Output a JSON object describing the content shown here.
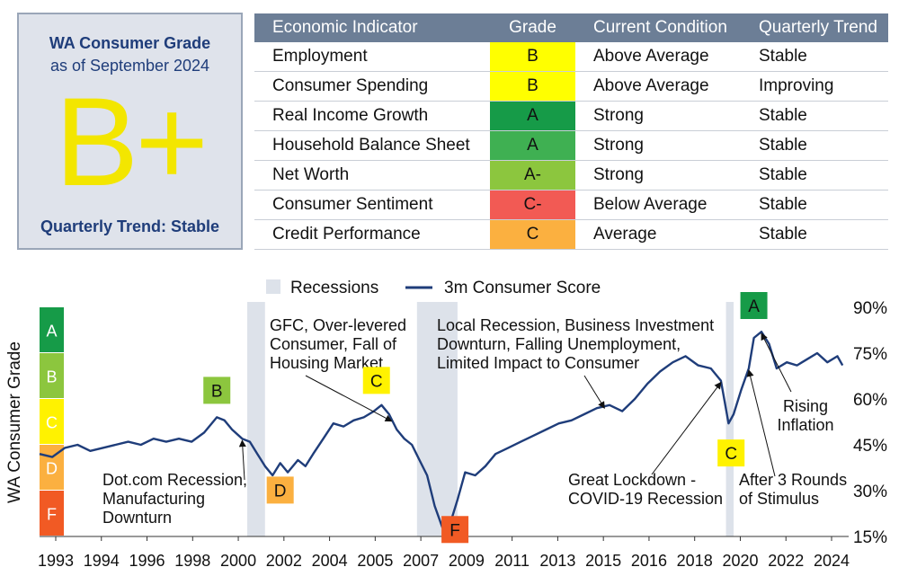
{
  "grade_box": {
    "title": "WA Consumer Grade",
    "subtitle": "as of September 2024",
    "grade": "B+",
    "trend": "Quarterly Trend: Stable"
  },
  "table": {
    "headers": [
      "Economic Indicator",
      "Grade",
      "Current Condition",
      "Quarterly Trend"
    ],
    "rows": [
      {
        "indicator": "Employment",
        "grade": "B",
        "condition": "Above Average",
        "trend": "Stable",
        "color": "#ffff00"
      },
      {
        "indicator": "Consumer Spending",
        "grade": "B",
        "condition": "Above Average",
        "trend": "Improving",
        "color": "#ffff00"
      },
      {
        "indicator": "Real Income Growth",
        "grade": "A",
        "condition": "Strong",
        "trend": "Stable",
        "color": "#169b48"
      },
      {
        "indicator": "Household Balance Sheet",
        "grade": "A",
        "condition": "Strong",
        "trend": "Stable",
        "color": "#3fb052"
      },
      {
        "indicator": "Net Worth",
        "grade": "A-",
        "condition": "Strong",
        "trend": "Stable",
        "color": "#8cc63e"
      },
      {
        "indicator": "Consumer Sentiment",
        "grade": "C-",
        "condition": "Below Average",
        "trend": "Stable",
        "color": "#f25a54"
      },
      {
        "indicator": "Credit Performance",
        "grade": "C",
        "condition": "Average",
        "trend": "Stable",
        "color": "#fbb040"
      }
    ]
  },
  "chart_data": {
    "type": "line",
    "title": "",
    "ylabel": "WA Consumer Grade",
    "ylim": [
      15,
      90
    ],
    "yticks": [
      "15%",
      "30%",
      "45%",
      "60%",
      "75%",
      "90%"
    ],
    "xticks": [
      "1993",
      "1994",
      "1996",
      "1998",
      "2000",
      "2002",
      "2004",
      "2005",
      "2007",
      "2009",
      "2011",
      "2013",
      "2015",
      "2016",
      "2018",
      "2020",
      "2022",
      "2024"
    ],
    "legend": {
      "recessions": "Recessions",
      "series": "3m Consumer Score"
    },
    "grade_bands": [
      {
        "label": "A",
        "color": "#169b48"
      },
      {
        "label": "B",
        "color": "#8cc63e"
      },
      {
        "label": "C",
        "color": "#fff200"
      },
      {
        "label": "D",
        "color": "#fbb040"
      },
      {
        "label": "F",
        "color": "#f15a24"
      }
    ],
    "recessions": [
      [
        2001.2,
        2001.9
      ],
      [
        2007.9,
        2009.5
      ],
      [
        2020.1,
        2020.4
      ]
    ],
    "series": [
      {
        "name": "3m Consumer Score",
        "x": [
          1993.0,
          1993.5,
          1994.0,
          1994.5,
          1995.0,
          1995.5,
          1996.0,
          1996.5,
          1997.0,
          1997.5,
          1998.0,
          1998.5,
          1999.0,
          1999.5,
          2000.0,
          2000.3,
          2000.6,
          2001.0,
          2001.3,
          2001.6,
          2001.9,
          2002.2,
          2002.5,
          2002.8,
          2003.2,
          2003.5,
          2003.8,
          2004.2,
          2004.6,
          2005.0,
          2005.4,
          2005.8,
          2006.2,
          2006.5,
          2006.8,
          2007.1,
          2007.4,
          2007.7,
          2008.0,
          2008.3,
          2008.6,
          2008.9,
          2009.2,
          2009.5,
          2009.8,
          2010.2,
          2010.6,
          2011.0,
          2011.5,
          2012.0,
          2012.5,
          2013.0,
          2013.5,
          2014.0,
          2014.5,
          2015.0,
          2015.5,
          2016.0,
          2016.5,
          2017.0,
          2017.5,
          2018.0,
          2018.5,
          2019.0,
          2019.5,
          2019.9,
          2020.2,
          2020.4,
          2020.7,
          2021.0,
          2021.2,
          2021.5,
          2021.8,
          2022.1,
          2022.5,
          2022.9,
          2023.3,
          2023.7,
          2024.1,
          2024.5,
          2024.7
        ],
        "values": [
          42,
          41,
          44,
          45,
          43,
          44,
          45,
          46,
          45,
          47,
          46,
          47,
          46,
          49,
          54,
          53,
          50,
          47,
          46,
          42,
          38,
          35,
          39,
          36,
          40,
          38,
          42,
          47,
          52,
          51,
          53,
          54,
          56,
          58,
          55,
          50,
          47,
          45,
          40,
          35,
          25,
          18,
          19,
          27,
          36,
          35,
          38,
          42,
          44,
          46,
          48,
          50,
          52,
          53,
          55,
          57,
          58,
          56,
          60,
          65,
          69,
          72,
          74,
          71,
          70,
          66,
          52,
          55,
          63,
          70,
          80,
          82,
          78,
          70,
          72,
          71,
          73,
          75,
          72,
          74,
          71
        ]
      }
    ],
    "point_labels": [
      {
        "label": "B",
        "x": 2000.0,
        "color": "#8cc63e"
      },
      {
        "label": "D",
        "x": 2002.5,
        "color": "#fbb040"
      },
      {
        "label": "C",
        "x": 2006.3,
        "color": "#fff200"
      },
      {
        "label": "F",
        "x": 2009.4,
        "color": "#f15a24"
      },
      {
        "label": "C",
        "x": 2020.3,
        "color": "#fff200"
      },
      {
        "label": "A",
        "x": 2021.2,
        "color": "#169b48"
      }
    ],
    "annotations": [
      {
        "lines": [
          "Dot.com Recession,",
          "Manufacturing",
          "Downturn"
        ]
      },
      {
        "lines": [
          "GFC, Over-levered",
          "Consumer, Fall of",
          "Housing Market"
        ]
      },
      {
        "lines": [
          "Local Recession, Business Investment",
          "Downturn, Falling Unemployment,",
          "Limited Impact to Consumer"
        ]
      },
      {
        "lines": [
          "Great Lockdown -",
          "COVID-19 Recession"
        ]
      },
      {
        "lines": [
          "After 3 Rounds",
          "of Stimulus"
        ]
      },
      {
        "lines": [
          "Rising",
          "Inflation"
        ]
      }
    ],
    "line_color": "#1f3d7a",
    "recession_color": "#dde2ea"
  }
}
